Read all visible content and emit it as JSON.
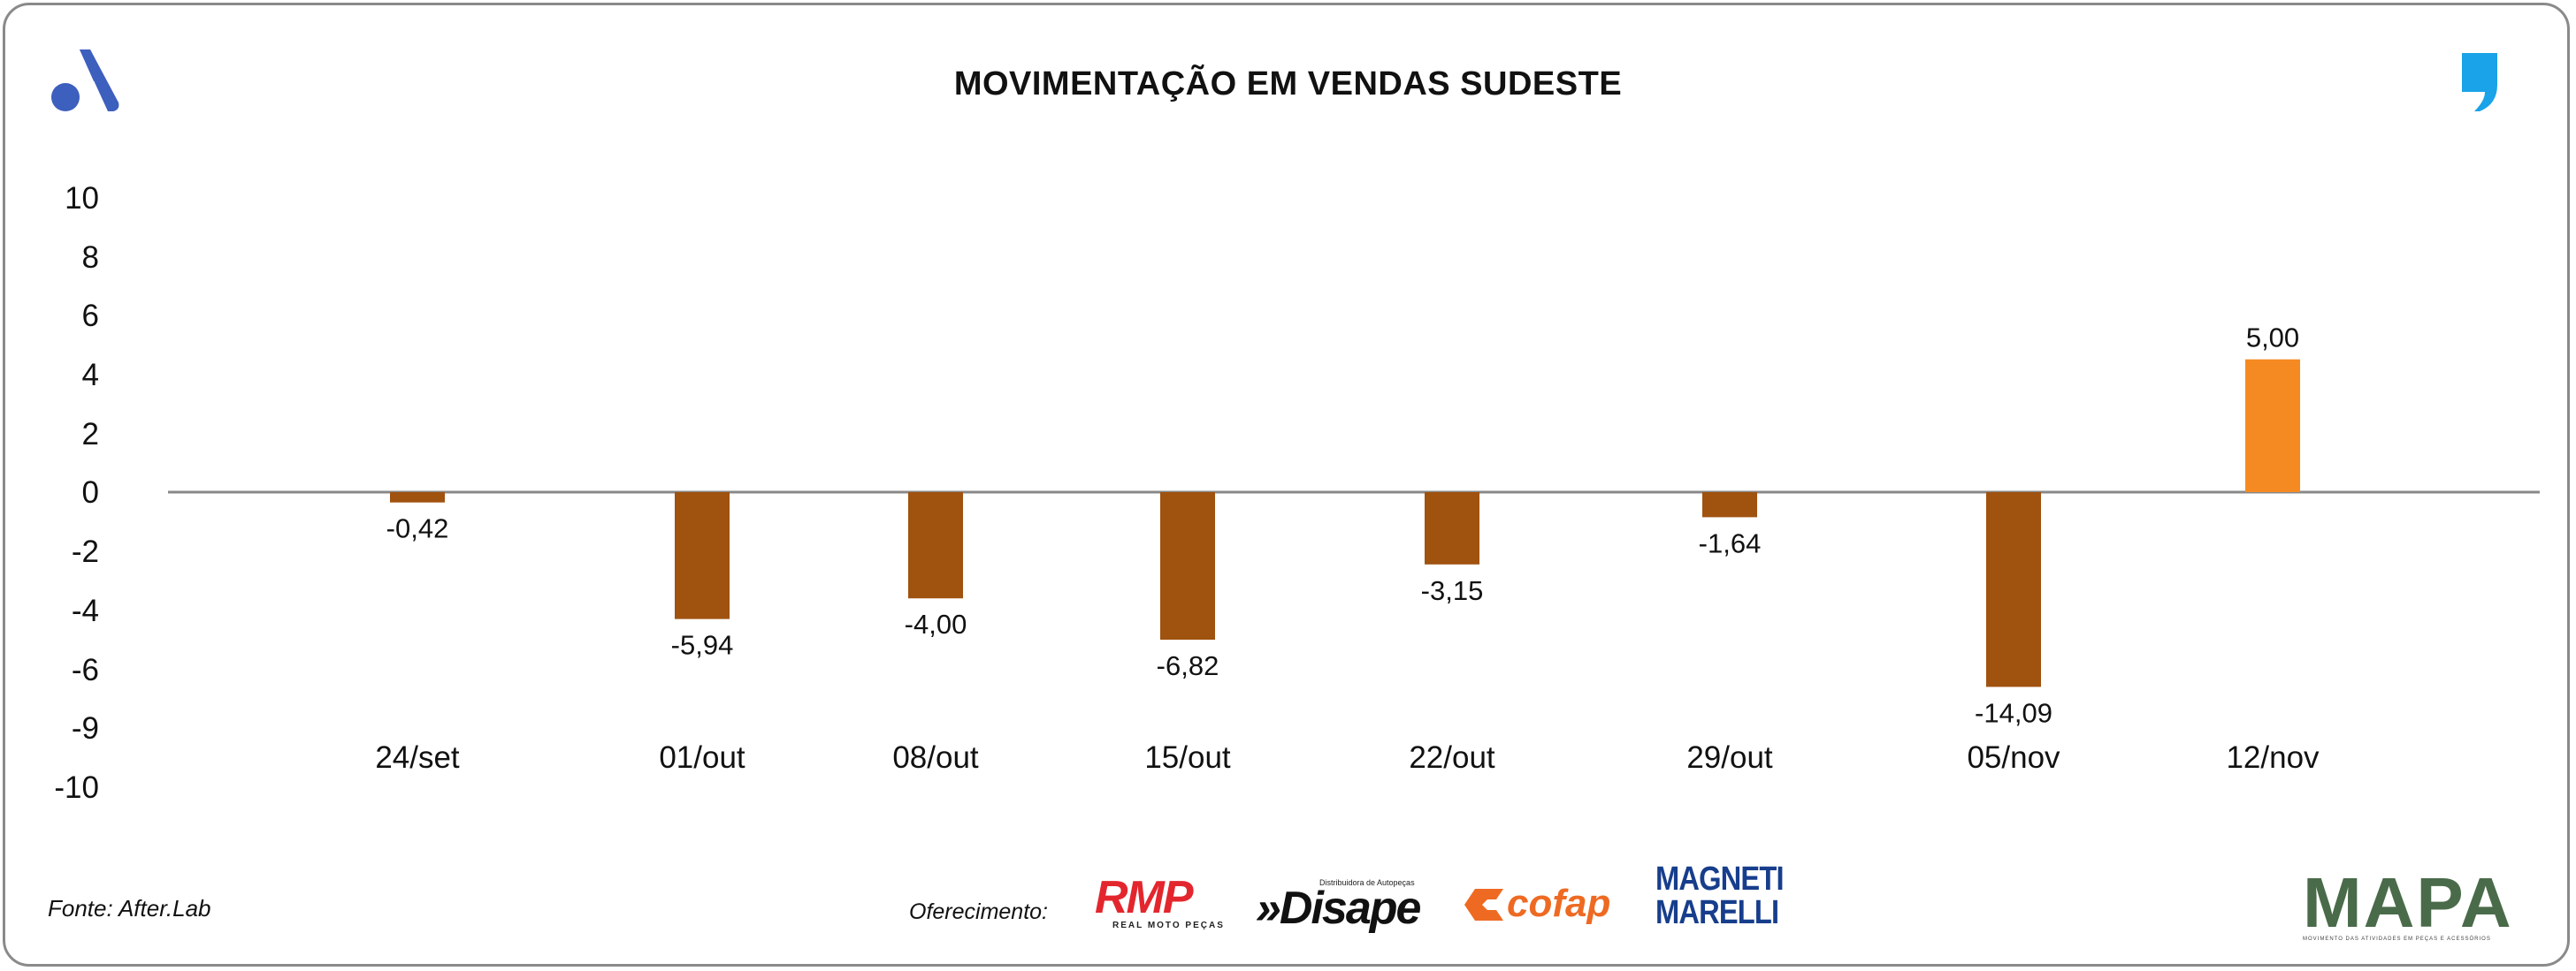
{
  "title": "MOVIMENTAÇÃO EM VENDAS SUDESTE",
  "footer": {
    "source": "Fonte: After.Lab",
    "offer_label": "Oferecimento:"
  },
  "sponsors": {
    "rmp": {
      "name": "RMP",
      "tagline": "REAL MOTO PEÇAS"
    },
    "disape": {
      "name": "»Disape",
      "tagline": "Distribuidora de Autopeças"
    },
    "cofap": {
      "name": "cofap"
    },
    "magneti": {
      "line1": "MAGNETI",
      "line2": "MARELLI"
    },
    "mapa": {
      "name": "MAPA",
      "tagline": "MOVIMENTO DAS ATIVIDADES EM PEÇAS E ACESSÓRIOS"
    }
  },
  "colors": {
    "negative": "#a0520f",
    "positive": "#f58a22",
    "axis": "#888888",
    "brand_blue": "#3d5fbd",
    "brand_cyan": "#1aa3e8"
  },
  "icons": {
    "left": "brand-a-icon",
    "right": "brand-quote-icon"
  },
  "chart_data": {
    "type": "bar",
    "title": "MOVIMENTAÇÃO EM VENDAS SUDESTE",
    "categories": [
      "24/set",
      "01/out",
      "08/out",
      "15/out",
      "22/out",
      "29/out",
      "05/nov",
      "12/nov"
    ],
    "values": [
      -0.42,
      -5.94,
      -4.0,
      -6.82,
      -3.15,
      -1.64,
      -14.09,
      5.0
    ],
    "value_labels": [
      "-0,42",
      "-5,94",
      "-4,00",
      "-6,82",
      "-3,15",
      "-1,64",
      "-14,09",
      "5,00"
    ],
    "bar_heights_on_axis": [
      -0.35,
      -4.3,
      -3.6,
      -5.0,
      -2.45,
      -0.85,
      -6.6,
      4.5
    ],
    "y_tick_labels": [
      "10",
      "8",
      "6",
      "4",
      "2",
      "0",
      "-2",
      "-4",
      "-6",
      "-9",
      "-10"
    ],
    "ylim": [
      -10,
      10
    ],
    "xlabel": "",
    "ylabel": "",
    "grid": false,
    "legend": "none"
  }
}
